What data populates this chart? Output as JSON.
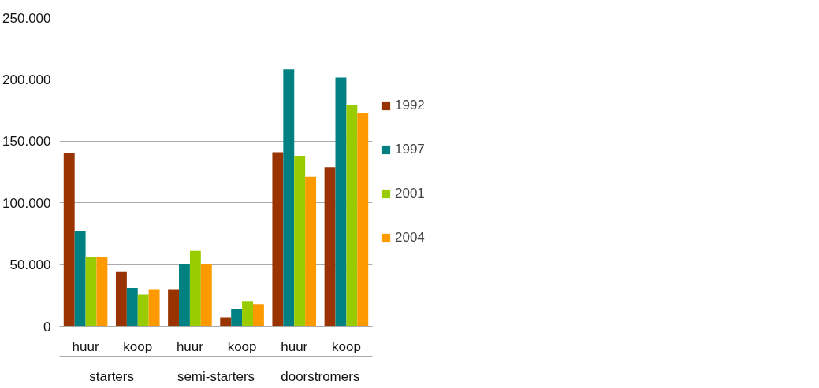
{
  "chart_data": {
    "type": "bar",
    "categories": [
      "huur",
      "koop",
      "huur",
      "koop",
      "huur",
      "koop"
    ],
    "series": [
      {
        "name": "1992",
        "color": "#993300",
        "values": [
          140000,
          44500,
          30000,
          7000,
          141000,
          129000
        ]
      },
      {
        "name": "1997",
        "color": "#008080",
        "values": [
          77000,
          31000,
          50000,
          14000,
          208000,
          201500
        ]
      },
      {
        "name": "2001",
        "color": "#99cc00",
        "values": [
          56000,
          25500,
          61000,
          20000,
          138000,
          179000
        ]
      },
      {
        "name": "2004",
        "color": "#ff9900",
        "values": [
          56000,
          30000,
          50000,
          18000,
          121000,
          172500
        ]
      }
    ],
    "annotations": [
      "starters",
      "semi-starters",
      "doorstromers"
    ],
    "ylim": [
      0,
      250000
    ],
    "yticks": [
      {
        "value": 0,
        "label": "0"
      },
      {
        "value": 50000,
        "label": "50.000"
      },
      {
        "value": 100000,
        "label": "100.000"
      },
      {
        "value": 150000,
        "label": "150.000"
      },
      {
        "value": 200000,
        "label": "200.000"
      },
      {
        "value": 250000,
        "label": "250.000"
      }
    ],
    "grid": "y",
    "legend": "right"
  }
}
